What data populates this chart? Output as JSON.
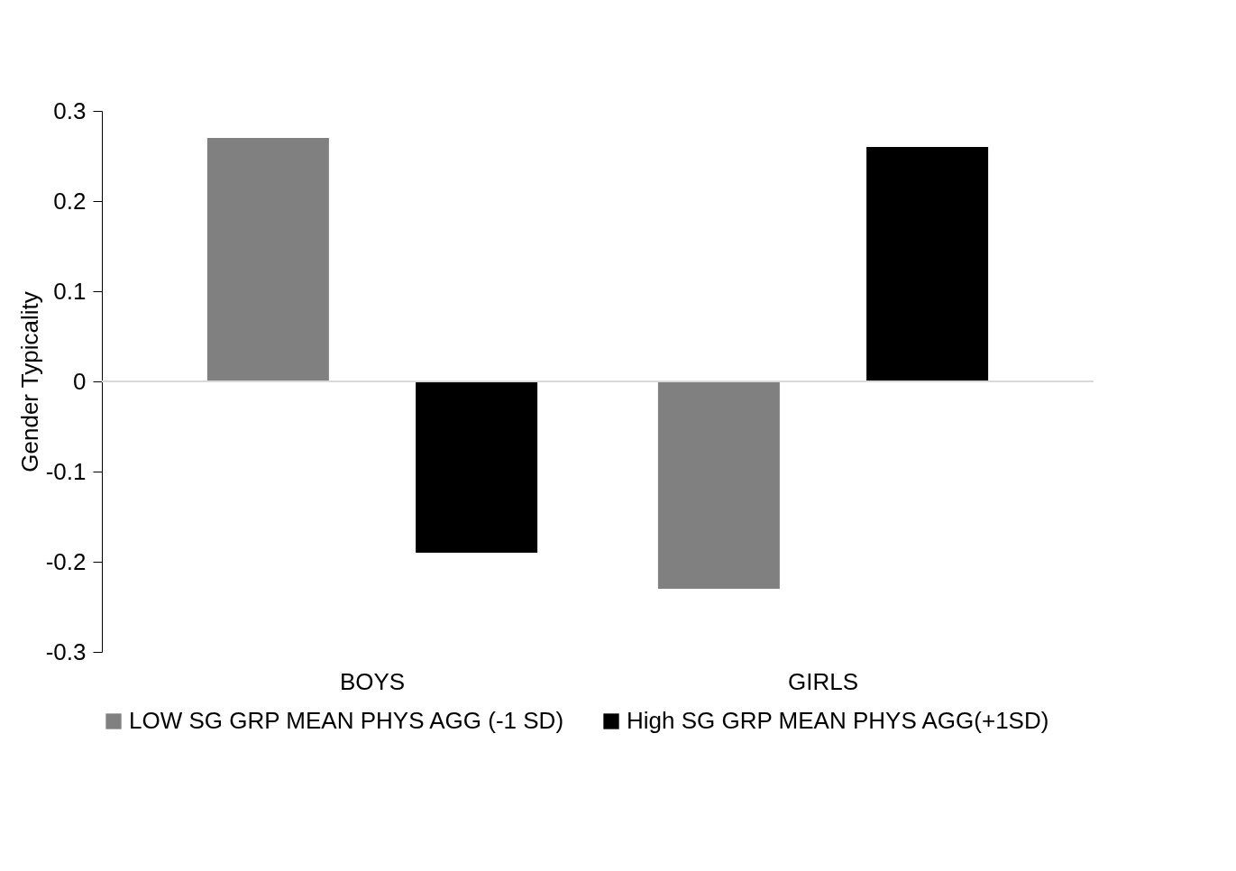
{
  "chart_data": {
    "type": "bar",
    "ylabel": "Gender Typicality",
    "categories": [
      "BOYS",
      "GIRLS"
    ],
    "series": [
      {
        "name": "LOW SG GRP MEAN  PHYS AGG (-1 SD)",
        "color": "#808080",
        "values": [
          0.27,
          -0.23
        ]
      },
      {
        "name": "High SG GRP MEAN PHYS AGG(+1SD)",
        "color": "#000000",
        "values": [
          -0.19,
          0.26
        ]
      }
    ],
    "ylim": [
      -0.3,
      0.3
    ],
    "yticks": [
      -0.3,
      -0.2,
      -0.1,
      0,
      0.1,
      0.2,
      0.3
    ],
    "grid": false,
    "legend": "bottom",
    "ref_lines": [
      {
        "axis": "y",
        "value": 0,
        "color": "#d9d9d9"
      }
    ]
  }
}
